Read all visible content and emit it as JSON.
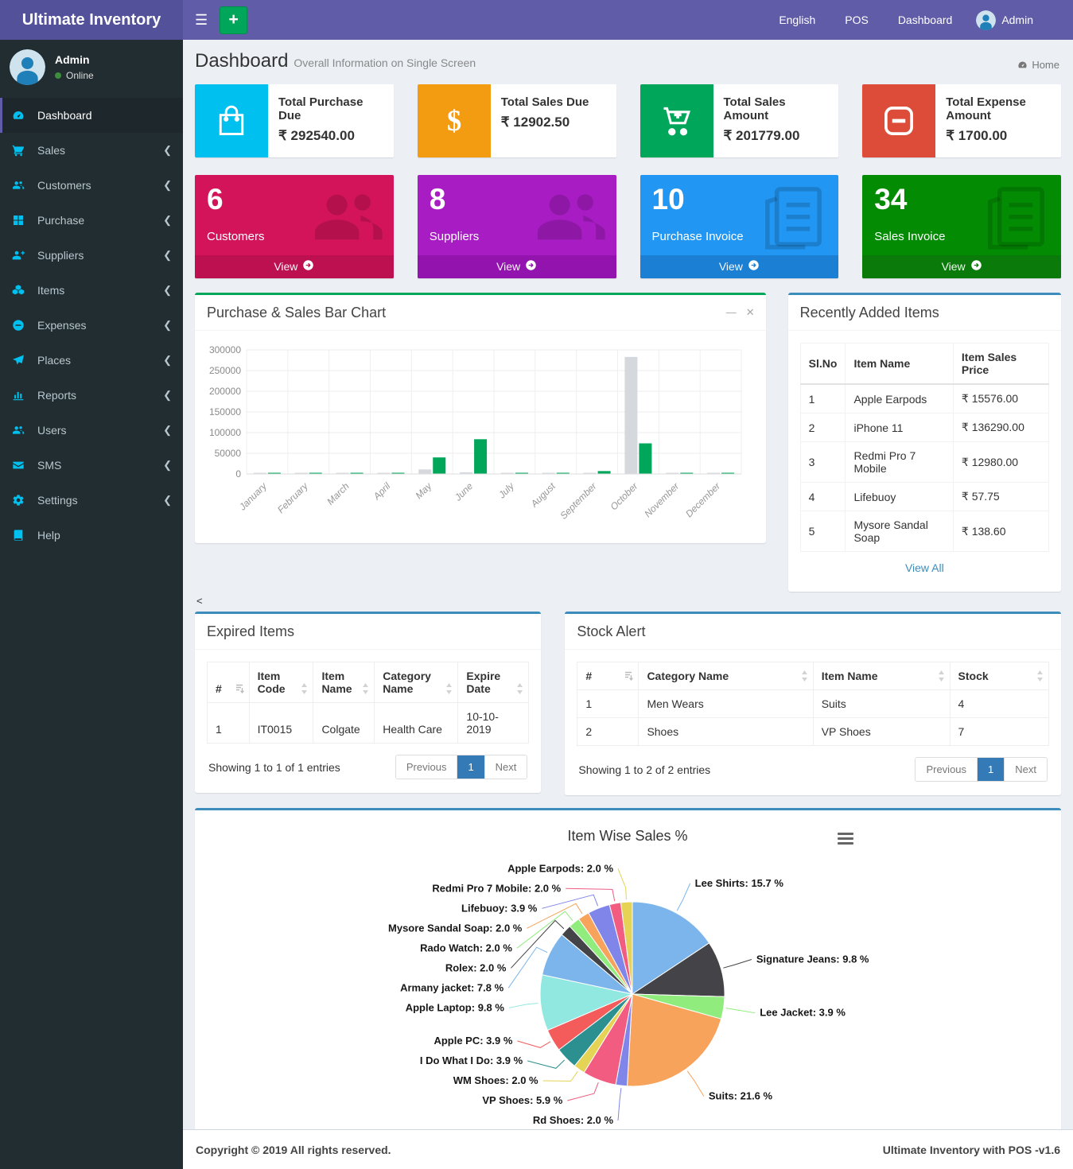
{
  "navbar": {
    "brand": "Ultimate Inventory",
    "language": "English",
    "pos": "POS",
    "dashboard": "Dashboard",
    "user": "Admin"
  },
  "sidebar": {
    "user": {
      "name": "Admin",
      "status": "Online"
    },
    "items": [
      {
        "label": "Dashboard",
        "icon": "tachometer-icon",
        "active": true,
        "chevron": false
      },
      {
        "label": "Sales",
        "icon": "cart-icon",
        "active": false,
        "chevron": true
      },
      {
        "label": "Customers",
        "icon": "users-icon",
        "active": false,
        "chevron": true
      },
      {
        "label": "Purchase",
        "icon": "grid-icon",
        "active": false,
        "chevron": true
      },
      {
        "label": "Suppliers",
        "icon": "user-plus-icon",
        "active": false,
        "chevron": true
      },
      {
        "label": "Items",
        "icon": "cubes-icon",
        "active": false,
        "chevron": true
      },
      {
        "label": "Expenses",
        "icon": "minus-circle-icon",
        "active": false,
        "chevron": true
      },
      {
        "label": "Places",
        "icon": "paper-plane-icon",
        "active": false,
        "chevron": true
      },
      {
        "label": "Reports",
        "icon": "bar-chart-icon",
        "active": false,
        "chevron": true
      },
      {
        "label": "Users",
        "icon": "users-icon",
        "active": false,
        "chevron": true
      },
      {
        "label": "SMS",
        "icon": "envelope-icon",
        "active": false,
        "chevron": true
      },
      {
        "label": "Settings",
        "icon": "cogs-icon",
        "active": false,
        "chevron": true
      },
      {
        "label": "Help",
        "icon": "book-icon",
        "active": false,
        "chevron": false
      }
    ]
  },
  "page_header": {
    "title": "Dashboard",
    "subtitle": "Overall Information on Single Screen",
    "breadcrumb": "Home"
  },
  "stat_cards": [
    {
      "title": "Total Purchase Due",
      "value": "₹ 292540.00",
      "color": "#00c0ef",
      "icon": "bag-icon"
    },
    {
      "title": "Total Sales Due",
      "value": "₹ 12902.50",
      "color": "#f39c12",
      "icon": "dollar-icon"
    },
    {
      "title": "Total Sales Amount",
      "value": "₹ 201779.00",
      "color": "#00a65a",
      "icon": "cart-plus-icon"
    },
    {
      "title": "Total Expense Amount",
      "value": "₹ 1700.00",
      "color": "#dd4b39",
      "icon": "minus-square-icon"
    }
  ],
  "summary_cards": [
    {
      "count": "6",
      "label": "Customers",
      "view_label": "View",
      "color": "#d4145a",
      "footer_color": "#bc1050",
      "bg_icon": "users-icon"
    },
    {
      "count": "8",
      "label": "Suppliers",
      "view_label": "View",
      "color": "#a81cc4",
      "footer_color": "#9213ad",
      "bg_icon": "users-icon"
    },
    {
      "count": "10",
      "label": "Purchase Invoice",
      "view_label": "View",
      "color": "#2196f3",
      "footer_color": "#1b7fd4",
      "bg_icon": "file-lines-icon"
    },
    {
      "count": "34",
      "label": "Sales Invoice",
      "view_label": "View",
      "color": "#038c03",
      "footer_color": "#0a7a0a",
      "bg_icon": "file-lines-icon"
    }
  ],
  "bar_chart_panel": {
    "title": "Purchase & Sales Bar Chart",
    "tools": [
      "minimize-icon",
      "close-icon"
    ]
  },
  "recent_items": {
    "title": "Recently Added Items",
    "headers": [
      "Sl.No",
      "Item Name",
      "Item Sales Price"
    ],
    "rows": [
      [
        "1",
        "Apple Earpods",
        "₹ 15576.00"
      ],
      [
        "2",
        "iPhone 11",
        "₹ 136290.00"
      ],
      [
        "3",
        "Redmi Pro 7 Mobile",
        "₹ 12980.00"
      ],
      [
        "4",
        "Lifebuoy",
        "₹ 57.75"
      ],
      [
        "5",
        "Mysore Sandal Soap",
        "₹ 138.60"
      ]
    ],
    "view_all": "View All"
  },
  "stray_text": "<",
  "expired_items": {
    "title": "Expired Items",
    "headers": [
      "#",
      "Item Code",
      "Item Name",
      "Category Name",
      "Expire Date"
    ],
    "col_widths": [
      "13%",
      "20%",
      "19%",
      "26%",
      "22%"
    ],
    "rows": [
      [
        "1",
        "IT0015",
        "Colgate",
        "Health Care",
        "10-10-2019"
      ]
    ],
    "showing": "Showing 1 to 1 of 1 entries",
    "pagination": {
      "previous": "Previous",
      "page": "1",
      "next": "Next"
    }
  },
  "stock_alert": {
    "title": "Stock Alert",
    "headers": [
      "#",
      "Category Name",
      "Item Name",
      "Stock"
    ],
    "col_widths": [
      "13%",
      "37%",
      "29%",
      "21%"
    ],
    "rows": [
      [
        "1",
        "Men Wears",
        "Suits",
        "4"
      ],
      [
        "2",
        "Shoes",
        "VP Shoes",
        "7"
      ]
    ],
    "showing": "Showing 1 to 2 of 2 entries",
    "pagination": {
      "previous": "Previous",
      "page": "1",
      "next": "Next"
    }
  },
  "chart_data": [
    {
      "type": "bar",
      "title": "Purchase & Sales Bar Chart",
      "categories": [
        "January",
        "February",
        "March",
        "April",
        "May",
        "June",
        "July",
        "August",
        "September",
        "October",
        "November",
        "December"
      ],
      "series": [
        {
          "name": "Purchase",
          "color": "#d5d9de",
          "values": [
            1500,
            1500,
            1500,
            1500,
            11000,
            4000,
            1500,
            1500,
            2500,
            283000,
            1500,
            1500
          ]
        },
        {
          "name": "Sales",
          "color": "#00a65a",
          "values": [
            2500,
            2500,
            2500,
            2500,
            40000,
            84000,
            2500,
            2500,
            7000,
            74000,
            2500,
            2500
          ]
        }
      ],
      "ylim": [
        0,
        300000
      ],
      "yticks": [
        0,
        50000,
        100000,
        150000,
        200000,
        250000,
        300000
      ],
      "grid": true,
      "legend": "none"
    },
    {
      "type": "pie",
      "title": "Item Wise Sales %",
      "label_suffix": "%",
      "series": [
        {
          "name": "Lee Shirts",
          "value": 15.7,
          "color": "#7cb5ec"
        },
        {
          "name": "Signature Jeans",
          "value": 9.8,
          "color": "#434348"
        },
        {
          "name": "Lee Jacket",
          "value": 3.9,
          "color": "#90ed7d"
        },
        {
          "name": "Suits",
          "value": 21.6,
          "color": "#f7a35c"
        },
        {
          "name": "Rd Shoes",
          "value": 2.0,
          "color": "#8085e9"
        },
        {
          "name": "VP Shoes",
          "value": 5.9,
          "color": "#f15c80"
        },
        {
          "name": "WM Shoes",
          "value": 2.0,
          "color": "#e4d354"
        },
        {
          "name": "I Do What I Do",
          "value": 3.9,
          "color": "#2b908f"
        },
        {
          "name": "Apple PC",
          "value": 3.9,
          "color": "#f45b5b"
        },
        {
          "name": "Apple Laptop",
          "value": 9.8,
          "color": "#91e8e1"
        },
        {
          "name": "Armany jacket",
          "value": 7.8,
          "color": "#7cb5ec"
        },
        {
          "name": "Rolex",
          "value": 2.0,
          "color": "#434348"
        },
        {
          "name": "Rado Watch",
          "value": 2.0,
          "color": "#90ed7d"
        },
        {
          "name": "Mysore Sandal Soap",
          "value": 2.0,
          "color": "#f7a35c"
        },
        {
          "name": "Lifebuoy",
          "value": 3.9,
          "color": "#8085e9"
        },
        {
          "name": "Redmi Pro 7 Mobile",
          "value": 2.0,
          "color": "#f15c80"
        },
        {
          "name": "Apple Earpods",
          "value": 2.0,
          "color": "#e4d354"
        }
      ]
    }
  ],
  "footer": {
    "left": "Copyright © 2019 All rights reserved.",
    "right": "Ultimate Inventory with POS -v1.6"
  }
}
